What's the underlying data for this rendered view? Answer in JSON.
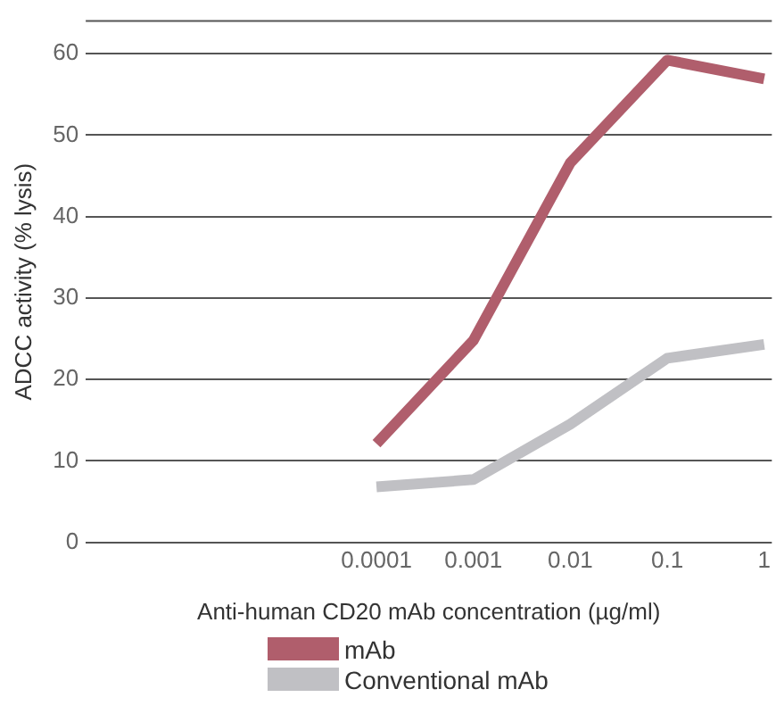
{
  "chart_data": {
    "type": "line",
    "xlabel": "Anti-human CD20 mAb concentration (µg/ml)",
    "ylabel": "ADCC activity (% lysis)",
    "x": [
      0.0001,
      0.001,
      0.01,
      0.1,
      1
    ],
    "log": "x",
    "xlim": [
      1e-07,
      1.2
    ],
    "xticks": [
      0.0001,
      0.001,
      0.01,
      0.1,
      1
    ],
    "ylim": [
      0,
      64
    ],
    "yticks": [
      0,
      10,
      20,
      30,
      40,
      50,
      60
    ],
    "grid": "y",
    "legend": "bottom",
    "marker": "none",
    "line_style": "solid",
    "series": [
      {
        "name": "mAb",
        "color": "#b05e6c",
        "values": [
          12.1,
          24.8,
          46.6,
          59.2,
          56.9
        ]
      },
      {
        "name": "Conventional mAb",
        "color": "#c0c0c4",
        "values": [
          6.8,
          7.7,
          14.5,
          22.6,
          24.3
        ]
      }
    ]
  }
}
